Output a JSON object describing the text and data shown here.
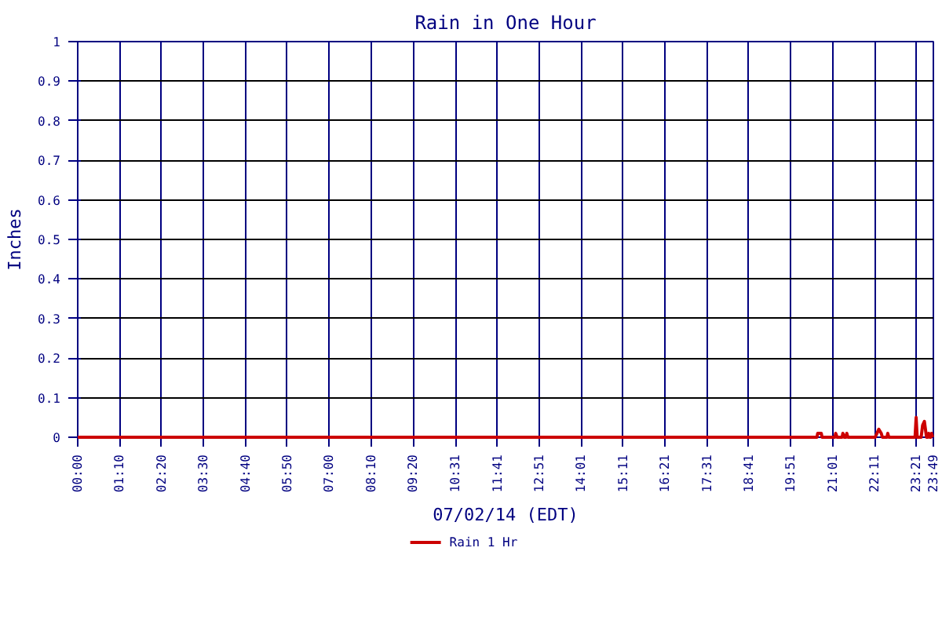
{
  "chart_data": {
    "type": "line",
    "title": "Rain in One Hour",
    "xlabel": "07/02/14 (EDT)",
    "ylabel": "Inches",
    "x": [
      0,
      20.58,
      20.6,
      20.7,
      20.72,
      21.08,
      21.1,
      21.14,
      21.28,
      21.3,
      21.34,
      21.39,
      21.41,
      21.44,
      22.2,
      22.25,
      22.3,
      22.37,
      22.4,
      22.53,
      22.55,
      22.58,
      23.31,
      23.34,
      23.37,
      23.48,
      23.52,
      23.57,
      23.6,
      23.63,
      23.67,
      23.69,
      23.72,
      23.75,
      23.77,
      23.8
    ],
    "series": [
      {
        "name": "Rain 1 Hr",
        "color": "#cc0000",
        "values": [
          0,
          0,
          0.01,
          0.01,
          0,
          0,
          0.01,
          0,
          0,
          0.01,
          0,
          0,
          0.01,
          0,
          0,
          0.01,
          0.02,
          0.01,
          0,
          0,
          0.01,
          0,
          0,
          0.05,
          0,
          0,
          0.03,
          0.04,
          0.02,
          0,
          0,
          0.01,
          0,
          0,
          0.01,
          0
        ]
      }
    ],
    "xlim": [
      0,
      23.82
    ],
    "xticks": [
      {
        "value": 0,
        "label": "00:00"
      },
      {
        "value": 1.167,
        "label": "01:10"
      },
      {
        "value": 2.333,
        "label": "02:20"
      },
      {
        "value": 3.5,
        "label": "03:30"
      },
      {
        "value": 4.667,
        "label": "04:40"
      },
      {
        "value": 5.833,
        "label": "05:50"
      },
      {
        "value": 7.0,
        "label": "07:00"
      },
      {
        "value": 8.167,
        "label": "08:10"
      },
      {
        "value": 9.333,
        "label": "09:20"
      },
      {
        "value": 10.517,
        "label": "10:31"
      },
      {
        "value": 11.683,
        "label": "11:41"
      },
      {
        "value": 12.85,
        "label": "12:51"
      },
      {
        "value": 14.017,
        "label": "14:01"
      },
      {
        "value": 15.183,
        "label": "15:11"
      },
      {
        "value": 16.35,
        "label": "16:21"
      },
      {
        "value": 17.517,
        "label": "17:31"
      },
      {
        "value": 18.683,
        "label": "18:41"
      },
      {
        "value": 19.85,
        "label": "19:51"
      },
      {
        "value": 21.017,
        "label": "21:01"
      },
      {
        "value": 22.183,
        "label": "22:11"
      },
      {
        "value": 23.35,
        "label": "23:21"
      },
      {
        "value": 23.817,
        "label": "23:49"
      }
    ],
    "ylim": [
      0,
      1
    ],
    "yticks": [
      0,
      0.1,
      0.2,
      0.3,
      0.4,
      0.5,
      0.6,
      0.7,
      0.8,
      0.9,
      1
    ],
    "grid": true,
    "legend": "bottom",
    "marker": "none",
    "line_style": "solid"
  }
}
